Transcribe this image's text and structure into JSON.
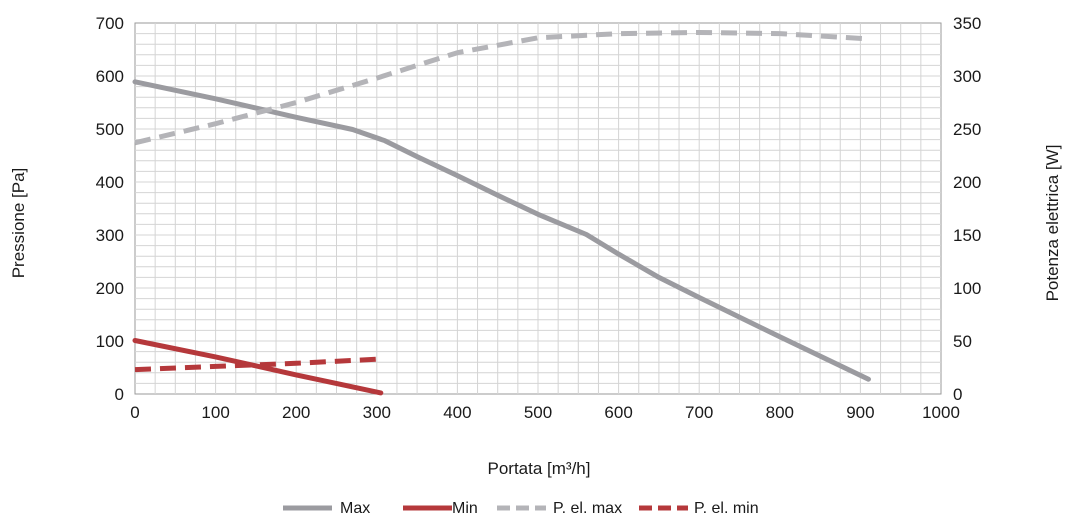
{
  "chart_data": {
    "type": "line",
    "xlabel": "Portata [m³/h]",
    "ylabel": "Pressione [Pa]",
    "y2label": "Potenza elettrica [W]",
    "xlim": [
      0,
      1000
    ],
    "ylim": [
      0,
      700
    ],
    "y2lim": [
      0,
      350
    ],
    "xticks": [
      "0",
      "100",
      "200",
      "300",
      "400",
      "500",
      "600",
      "700",
      "800",
      "900",
      "1000"
    ],
    "yticks": [
      "0",
      "100",
      "200",
      "300",
      "400",
      "500",
      "600",
      "700"
    ],
    "y2ticks": [
      "0",
      "50",
      "100",
      "150",
      "200",
      "250",
      "300",
      "350"
    ],
    "grid": true,
    "legend_position": "bottom-center",
    "series": [
      {
        "name": "Max",
        "axis": "left",
        "style": "solid",
        "color": "#9b9ba0",
        "x": [
          0,
          100,
          200,
          270,
          310,
          350,
          400,
          450,
          500,
          560,
          600,
          650,
          700,
          800,
          910
        ],
        "y": [
          589,
          557,
          522,
          499,
          478,
          448,
          412,
          375,
          339,
          301,
          264,
          220,
          182,
          108,
          28
        ]
      },
      {
        "name": "Min",
        "axis": "left",
        "style": "solid",
        "color": "#b5383b",
        "x": [
          0,
          100,
          200,
          305
        ],
        "y": [
          101,
          70,
          36,
          2
        ]
      },
      {
        "name": "P. el. max",
        "axis": "right",
        "style": "dashed",
        "color": "#b4b4b8",
        "x": [
          0,
          100,
          200,
          300,
          400,
          500,
          600,
          700,
          800,
          910
        ],
        "y": [
          237,
          255,
          275,
          298,
          322,
          336,
          340,
          341,
          340,
          335
        ]
      },
      {
        "name": "P. el. min",
        "axis": "right",
        "style": "dashed",
        "color": "#b5383b",
        "x": [
          0,
          100,
          200,
          305
        ],
        "y": [
          23,
          26,
          29,
          33
        ]
      }
    ]
  }
}
